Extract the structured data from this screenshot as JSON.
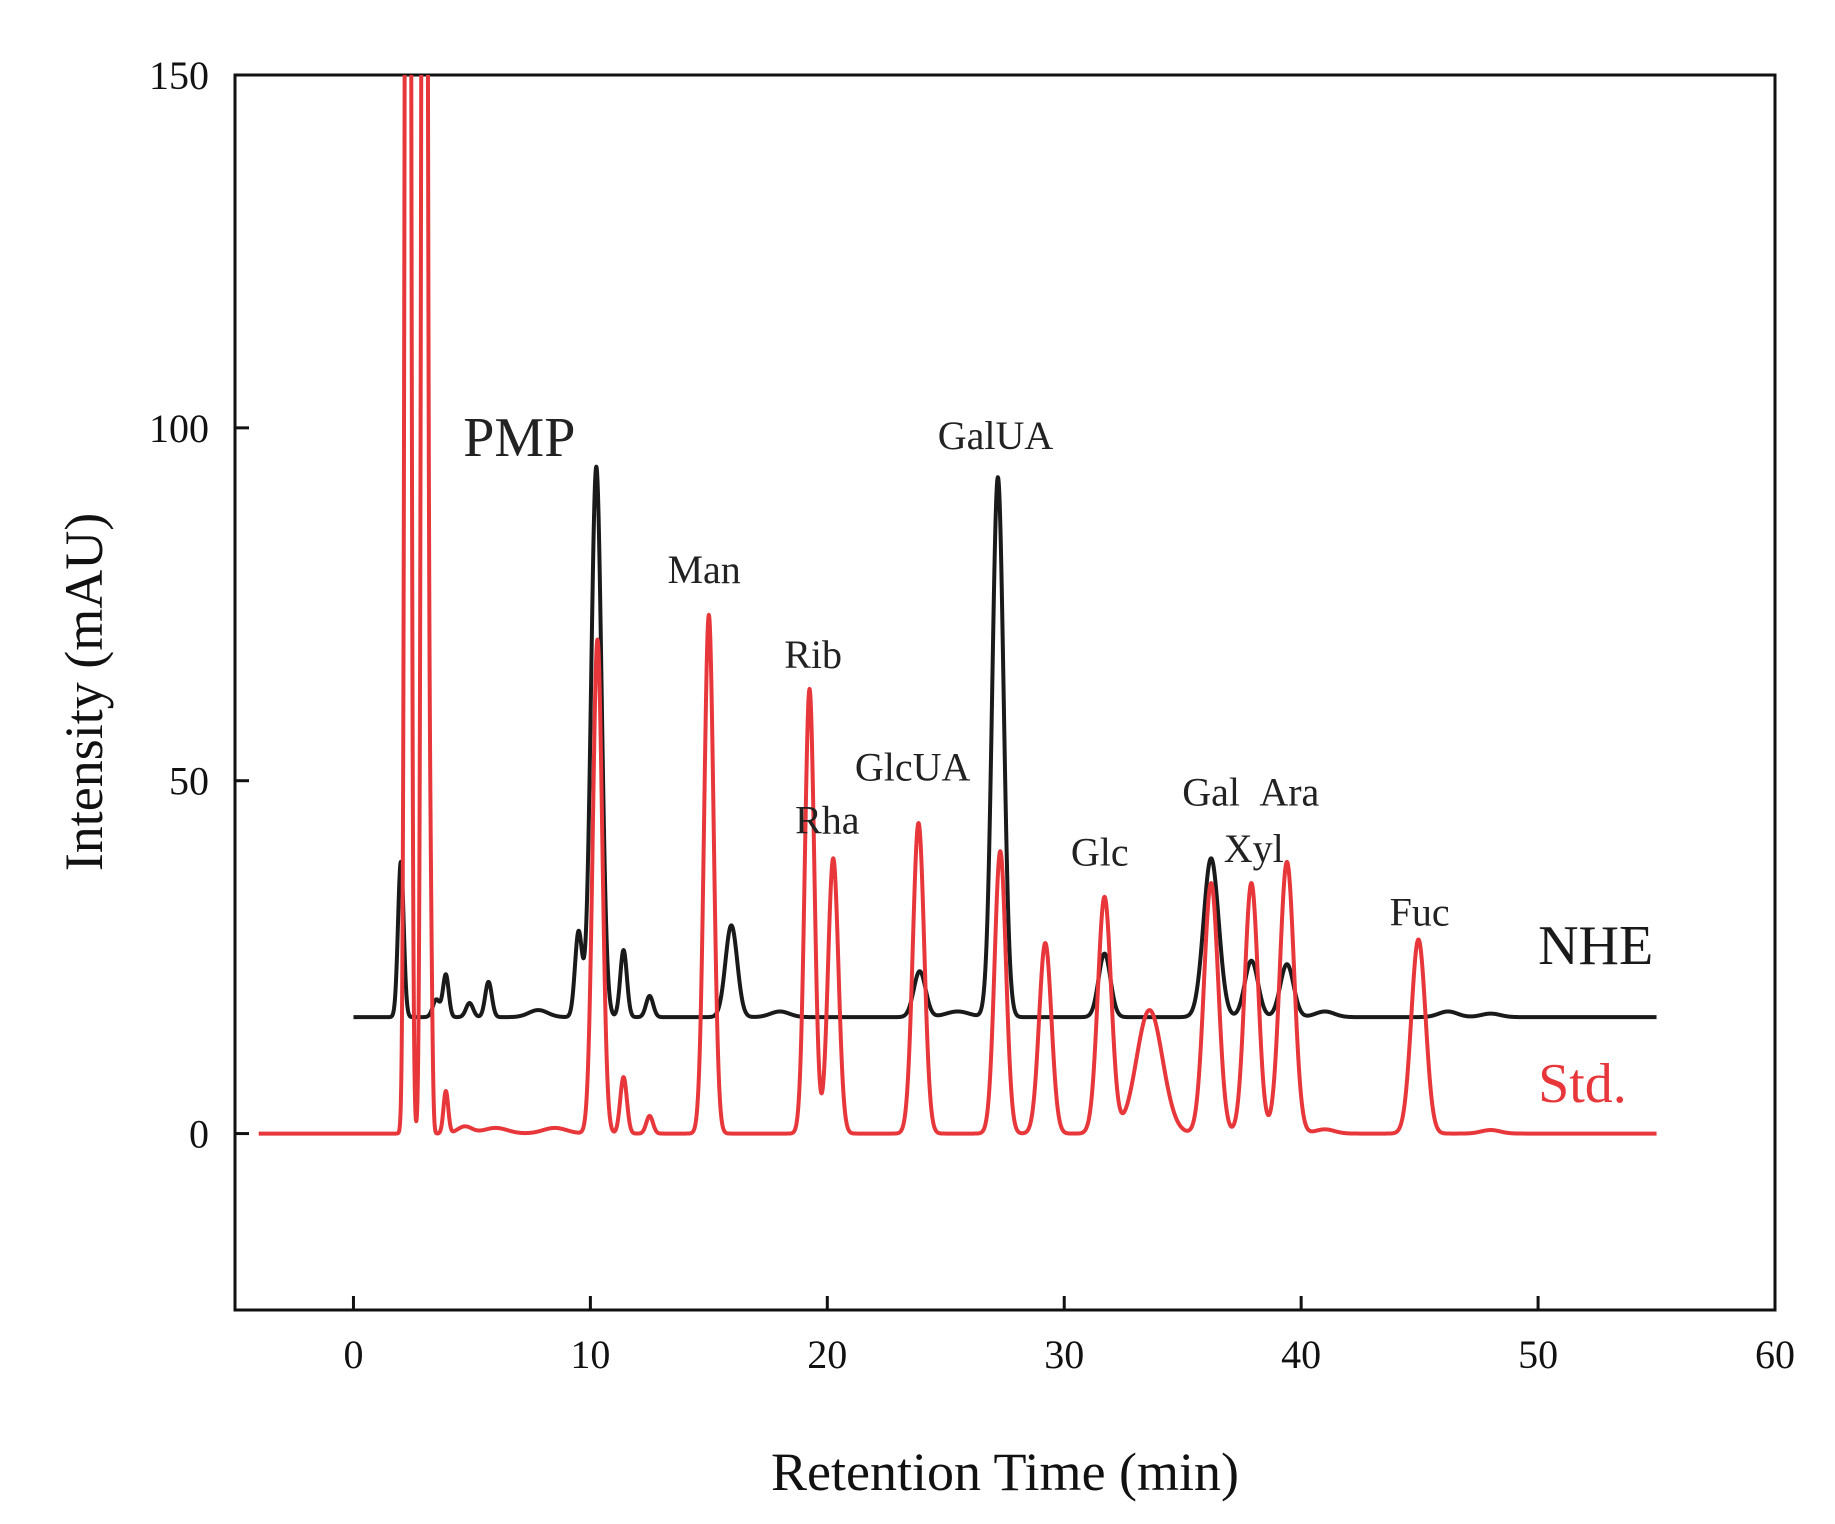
{
  "chart_data": {
    "type": "line",
    "title": "",
    "xlabel": "Retention Time (min)",
    "ylabel": "Intensity (mAU)",
    "xlim": [
      -5,
      60
    ],
    "ylim": [
      -25,
      150
    ],
    "xticks": [
      0,
      10,
      20,
      30,
      40,
      50,
      60
    ],
    "yticks": [
      0,
      50,
      100,
      150
    ],
    "grid": false,
    "colors": {
      "NHE": "#1a1a1a",
      "Std.": "#e8373a",
      "axis": "#111111"
    },
    "series": [
      {
        "name": "NHE",
        "x_range": [
          0,
          55
        ],
        "baseline": 16.5,
        "peaks": [
          {
            "x": 2.0,
            "height": 22,
            "width": 0.12
          },
          {
            "x": 3.5,
            "height": 2.5,
            "width": 0.15
          },
          {
            "x": 3.9,
            "height": 6,
            "width": 0.12
          },
          {
            "x": 4.9,
            "height": 2,
            "width": 0.15
          },
          {
            "x": 5.7,
            "height": 5,
            "width": 0.14
          },
          {
            "x": 7.8,
            "height": 1,
            "width": 0.4
          },
          {
            "x": 9.5,
            "height": 12,
            "width": 0.15
          },
          {
            "x": 10.25,
            "height": 78,
            "width": 0.22
          },
          {
            "x": 11.4,
            "height": 9.5,
            "width": 0.14
          },
          {
            "x": 12.5,
            "height": 3,
            "width": 0.15
          },
          {
            "x": 15.95,
            "height": 13,
            "width": 0.25
          },
          {
            "x": 18.0,
            "height": 0.8,
            "width": 0.4
          },
          {
            "x": 23.9,
            "height": 6.5,
            "width": 0.25
          },
          {
            "x": 25.5,
            "height": 0.8,
            "width": 0.5
          },
          {
            "x": 27.2,
            "height": 76.5,
            "width": 0.24
          },
          {
            "x": 31.7,
            "height": 9,
            "width": 0.25
          },
          {
            "x": 36.2,
            "height": 22.5,
            "width": 0.32
          },
          {
            "x": 37.9,
            "height": 8,
            "width": 0.28
          },
          {
            "x": 39.4,
            "height": 7.5,
            "width": 0.28
          },
          {
            "x": 41.0,
            "height": 0.8,
            "width": 0.4
          },
          {
            "x": 46.2,
            "height": 0.8,
            "width": 0.4
          },
          {
            "x": 48.0,
            "height": 0.5,
            "width": 0.4
          }
        ]
      },
      {
        "name": "Std.",
        "x_range": [
          -4,
          55
        ],
        "baseline": 0,
        "peaks": [
          {
            "x": 2.3,
            "height": 400,
            "width": 0.1
          },
          {
            "x": 3.0,
            "height": 400,
            "width": 0.1
          },
          {
            "x": 3.25,
            "height": 29,
            "width": 0.07
          },
          {
            "x": 3.9,
            "height": 6,
            "width": 0.1
          },
          {
            "x": 4.7,
            "height": 1,
            "width": 0.3
          },
          {
            "x": 6.0,
            "height": 0.8,
            "width": 0.5
          },
          {
            "x": 8.5,
            "height": 0.8,
            "width": 0.5
          },
          {
            "x": 10.3,
            "height": 70,
            "width": 0.2
          },
          {
            "x": 11.4,
            "height": 8,
            "width": 0.14
          },
          {
            "x": 12.5,
            "height": 2.5,
            "width": 0.14
          },
          {
            "x": 15.0,
            "height": 73.5,
            "width": 0.2
          },
          {
            "x": 19.25,
            "height": 63,
            "width": 0.2
          },
          {
            "x": 20.25,
            "height": 39,
            "width": 0.22
          },
          {
            "x": 23.85,
            "height": 44,
            "width": 0.24
          },
          {
            "x": 27.3,
            "height": 40,
            "width": 0.24
          },
          {
            "x": 29.2,
            "height": 27,
            "width": 0.26
          },
          {
            "x": 31.7,
            "height": 33.5,
            "width": 0.28
          },
          {
            "x": 33.6,
            "height": 17.5,
            "width": 0.55
          },
          {
            "x": 36.2,
            "height": 35.5,
            "width": 0.3
          },
          {
            "x": 37.9,
            "height": 35.5,
            "width": 0.28
          },
          {
            "x": 39.4,
            "height": 38.5,
            "width": 0.3
          },
          {
            "x": 44.95,
            "height": 27.5,
            "width": 0.3
          },
          {
            "x": 41.0,
            "height": 0.6,
            "width": 0.4
          },
          {
            "x": 48.0,
            "height": 0.5,
            "width": 0.4
          }
        ]
      }
    ],
    "annotations": [
      {
        "text": "PMP",
        "x": 7.0,
        "y": 96,
        "style": "pmp"
      },
      {
        "text": "Man",
        "x": 14.8,
        "y": 78,
        "style": "peak"
      },
      {
        "text": "Rib",
        "x": 19.4,
        "y": 66,
        "style": "peak"
      },
      {
        "text": "GlcUA",
        "x": 23.6,
        "y": 50,
        "style": "peak"
      },
      {
        "text": "Rha",
        "x": 20.0,
        "y": 42.5,
        "style": "peak"
      },
      {
        "text": "GalUA",
        "x": 27.1,
        "y": 97,
        "style": "peak"
      },
      {
        "text": "Glc",
        "x": 31.5,
        "y": 38,
        "style": "peak"
      },
      {
        "text": "Gal",
        "x": 36.2,
        "y": 46.5,
        "style": "peak"
      },
      {
        "text": "Ara",
        "x": 39.5,
        "y": 46.5,
        "style": "peak"
      },
      {
        "text": "Xyl",
        "x": 38.0,
        "y": 38.5,
        "style": "peak"
      },
      {
        "text": "Fuc",
        "x": 45.0,
        "y": 29.5,
        "style": "peak"
      }
    ],
    "series_labels": [
      {
        "text": "NHE",
        "x": 50.0,
        "y": 24,
        "series": "NHE"
      },
      {
        "text": "Std.",
        "x": 50.0,
        "y": 4.5,
        "series": "Std."
      }
    ]
  }
}
